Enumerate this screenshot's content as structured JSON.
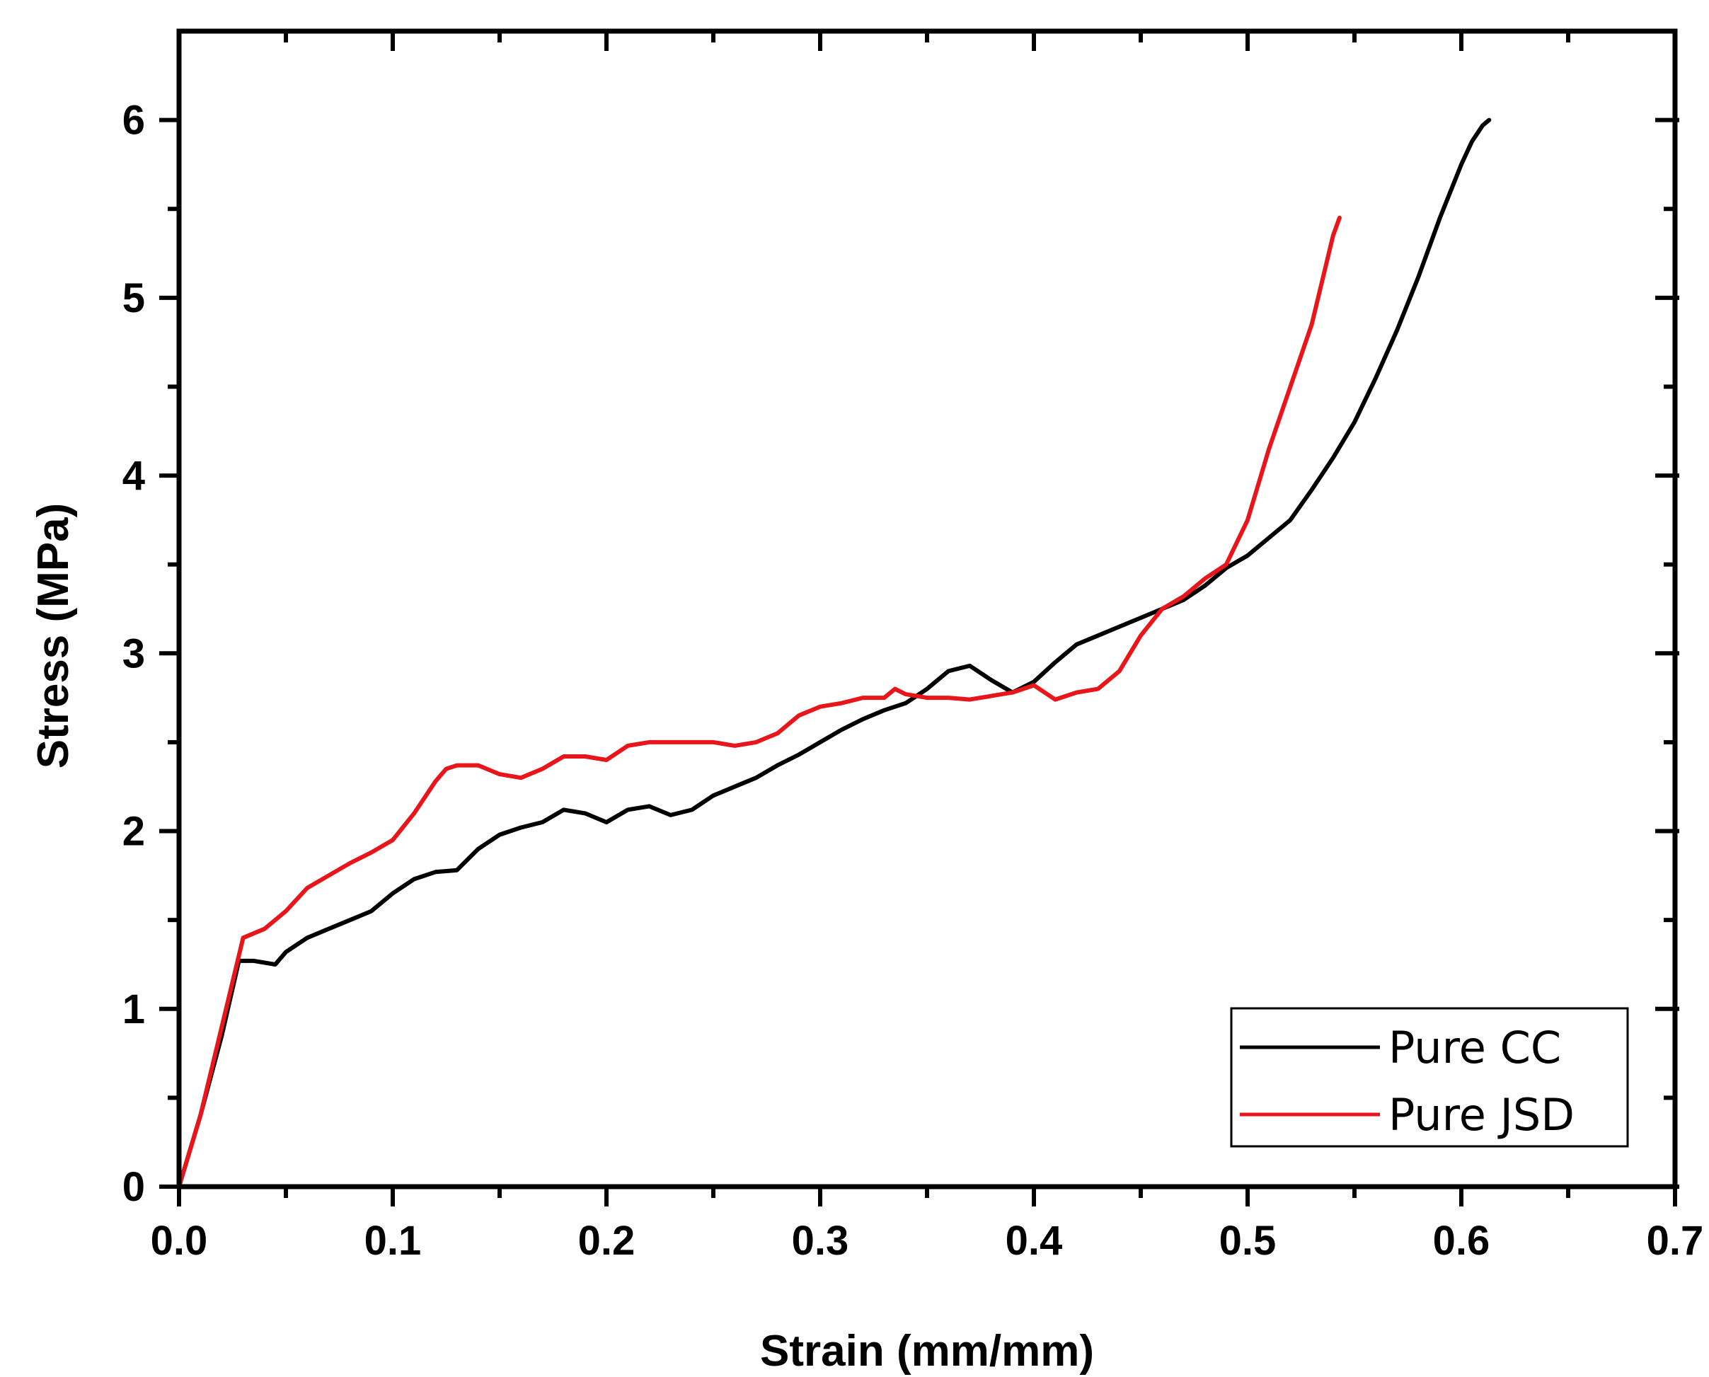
{
  "chart_data": {
    "type": "line",
    "title": "",
    "xlabel": "Strain (mm/mm)",
    "ylabel": "Stress (MPa)",
    "xlim": [
      0.0,
      0.7
    ],
    "ylim": [
      0,
      6.5
    ],
    "xticks": [
      0.0,
      0.1,
      0.2,
      0.3,
      0.4,
      0.5,
      0.6,
      0.7
    ],
    "xtick_labels": [
      "0.0",
      "0.1",
      "0.2",
      "0.3",
      "0.4",
      "0.5",
      "0.6",
      "0.7"
    ],
    "yticks": [
      0,
      1,
      2,
      3,
      4,
      5,
      6
    ],
    "ytick_labels": [
      "0",
      "1",
      "2",
      "3",
      "4",
      "5",
      "6"
    ],
    "grid": false,
    "legend_position": "bottom-right",
    "series": [
      {
        "name": "Pure CC",
        "color": "#000000",
        "x": [
          0.0,
          0.01,
          0.02,
          0.028,
          0.035,
          0.045,
          0.05,
          0.06,
          0.07,
          0.08,
          0.09,
          0.1,
          0.11,
          0.12,
          0.13,
          0.14,
          0.15,
          0.16,
          0.17,
          0.18,
          0.19,
          0.2,
          0.21,
          0.22,
          0.23,
          0.24,
          0.25,
          0.26,
          0.27,
          0.28,
          0.29,
          0.3,
          0.31,
          0.32,
          0.33,
          0.34,
          0.35,
          0.36,
          0.37,
          0.38,
          0.39,
          0.4,
          0.41,
          0.42,
          0.43,
          0.44,
          0.45,
          0.46,
          0.47,
          0.48,
          0.49,
          0.5,
          0.51,
          0.52,
          0.53,
          0.54,
          0.55,
          0.56,
          0.57,
          0.58,
          0.59,
          0.6,
          0.605,
          0.61,
          0.613
        ],
        "y": [
          0.0,
          0.4,
          0.85,
          1.27,
          1.27,
          1.25,
          1.32,
          1.4,
          1.45,
          1.5,
          1.55,
          1.65,
          1.73,
          1.77,
          1.78,
          1.9,
          1.98,
          2.02,
          2.05,
          2.12,
          2.1,
          2.05,
          2.12,
          2.14,
          2.09,
          2.12,
          2.2,
          2.25,
          2.3,
          2.37,
          2.43,
          2.5,
          2.57,
          2.63,
          2.68,
          2.72,
          2.8,
          2.9,
          2.93,
          2.85,
          2.78,
          2.84,
          2.95,
          3.05,
          3.1,
          3.15,
          3.2,
          3.25,
          3.3,
          3.38,
          3.48,
          3.55,
          3.65,
          3.75,
          3.92,
          4.1,
          4.3,
          4.55,
          4.82,
          5.12,
          5.45,
          5.75,
          5.88,
          5.97,
          6.0
        ]
      },
      {
        "name": "Pure JSD",
        "color": "#e8151b",
        "x": [
          0.0,
          0.01,
          0.02,
          0.03,
          0.04,
          0.05,
          0.06,
          0.07,
          0.08,
          0.09,
          0.1,
          0.11,
          0.12,
          0.125,
          0.13,
          0.14,
          0.15,
          0.16,
          0.17,
          0.18,
          0.19,
          0.2,
          0.21,
          0.22,
          0.23,
          0.24,
          0.25,
          0.26,
          0.27,
          0.28,
          0.29,
          0.3,
          0.31,
          0.32,
          0.33,
          0.335,
          0.34,
          0.35,
          0.36,
          0.37,
          0.38,
          0.39,
          0.4,
          0.41,
          0.42,
          0.43,
          0.44,
          0.45,
          0.46,
          0.47,
          0.48,
          0.49,
          0.5,
          0.51,
          0.52,
          0.53,
          0.535,
          0.54,
          0.543
        ],
        "y": [
          0.0,
          0.4,
          0.9,
          1.4,
          1.45,
          1.55,
          1.68,
          1.75,
          1.82,
          1.88,
          1.95,
          2.1,
          2.28,
          2.35,
          2.37,
          2.37,
          2.32,
          2.3,
          2.35,
          2.42,
          2.42,
          2.4,
          2.48,
          2.5,
          2.5,
          2.5,
          2.5,
          2.48,
          2.5,
          2.55,
          2.65,
          2.7,
          2.72,
          2.75,
          2.75,
          2.8,
          2.77,
          2.75,
          2.75,
          2.74,
          2.76,
          2.78,
          2.82,
          2.74,
          2.78,
          2.8,
          2.9,
          3.1,
          3.25,
          3.32,
          3.42,
          3.5,
          3.75,
          4.15,
          4.5,
          4.85,
          5.1,
          5.35,
          5.45
        ]
      }
    ]
  }
}
